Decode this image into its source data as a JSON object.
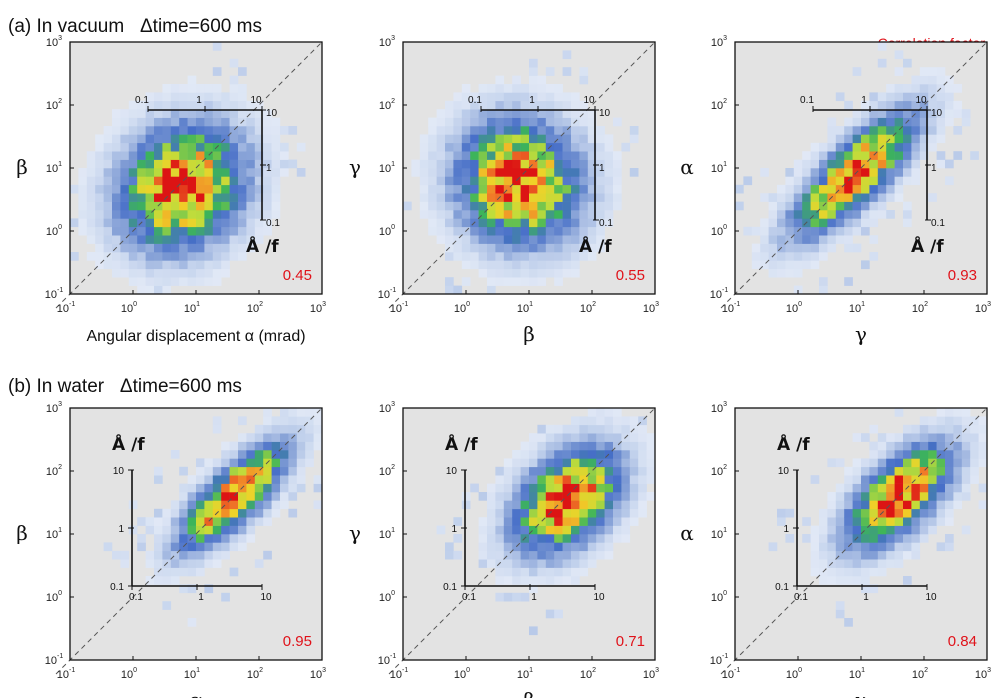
{
  "rows": [
    {
      "label": "(a) In vacuum   Δtime=600 ms"
    },
    {
      "label": "(b) In water   Δtime=600 ms"
    }
  ],
  "legend_note": "Correlation factor",
  "unit_label": "Å /f",
  "axis_ticks": [
    "10",
    "10",
    "10",
    "10",
    "10"
  ],
  "axis_tick_exponents": [
    "-1",
    "0",
    "1",
    "2",
    "3"
  ],
  "inset_ticks": [
    "0.1",
    "1",
    "10"
  ],
  "chart_data": [
    {
      "type": "heatmap",
      "row": 0,
      "col": 0,
      "xlabel": "Angular displacement α (mrad)",
      "ylabel": "β",
      "xlim": [
        0.1,
        1000
      ],
      "ylim": [
        0.1,
        1000
      ],
      "log_scale": true,
      "diagonal": "y=x",
      "correlation": "0.45",
      "hotspot": [
        6,
        5
      ],
      "spread": [
        0.55,
        0.35
      ]
    },
    {
      "type": "heatmap",
      "row": 0,
      "col": 1,
      "xlabel": "β",
      "ylabel": "γ",
      "xlim": [
        0.1,
        1000
      ],
      "ylim": [
        0.1,
        1000
      ],
      "log_scale": true,
      "diagonal": "y=x",
      "correlation": "0.55",
      "hotspot": [
        7,
        6
      ],
      "spread": [
        0.45,
        0.4
      ]
    },
    {
      "type": "heatmap",
      "row": 0,
      "col": 2,
      "xlabel": "γ",
      "ylabel": "α",
      "xlim": [
        0.1,
        1000
      ],
      "ylim": [
        0.1,
        1000
      ],
      "log_scale": true,
      "diagonal": "y=x",
      "correlation": "0.93",
      "hotspot": [
        8,
        8
      ],
      "spread": [
        0.75,
        0.12
      ]
    },
    {
      "type": "heatmap",
      "row": 1,
      "col": 0,
      "xlabel": "α",
      "ylabel": "β",
      "xlim": [
        0.1,
        1000
      ],
      "ylim": [
        0.1,
        1000
      ],
      "log_scale": true,
      "diagonal": "y=x",
      "correlation": "0.95",
      "hotspot": [
        40,
        40
      ],
      "spread": [
        0.6,
        0.1
      ]
    },
    {
      "type": "heatmap",
      "row": 1,
      "col": 1,
      "xlabel": "β",
      "ylabel": "γ",
      "xlim": [
        0.1,
        1000
      ],
      "ylim": [
        0.1,
        1000
      ],
      "log_scale": true,
      "diagonal": "y=x",
      "correlation": "0.71",
      "hotspot": [
        40,
        35
      ],
      "spread": [
        0.5,
        0.22
      ]
    },
    {
      "type": "heatmap",
      "row": 1,
      "col": 2,
      "xlabel": "γ",
      "ylabel": "α",
      "xlim": [
        0.1,
        1000
      ],
      "ylim": [
        0.1,
        1000
      ],
      "log_scale": true,
      "diagonal": "y=x",
      "correlation": "0.84",
      "hotspot": [
        40,
        40
      ],
      "spread": [
        0.55,
        0.15
      ]
    }
  ]
}
